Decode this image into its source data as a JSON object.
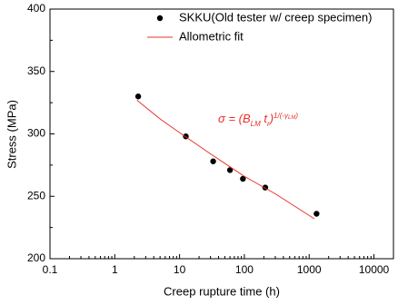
{
  "chart_data": {
    "type": "scatter",
    "x_label": "Creep rupture time (h)",
    "y_label": "Stress (MPa)",
    "xscale": "log",
    "xlim": [
      0.1,
      20000
    ],
    "xticks": [
      0.1,
      1,
      10,
      100,
      1000,
      10000
    ],
    "ylim": [
      200,
      400
    ],
    "yticks": [
      200,
      250,
      300,
      350,
      400
    ],
    "series": [
      {
        "name": "SKKU(Old tester w/ creep specimen)",
        "color": "#000000",
        "style": "markers",
        "x": [
          2.3,
          12.5,
          33,
          60,
          95,
          210,
          1300
        ],
        "values": [
          330,
          298,
          278,
          271,
          264,
          257,
          236
        ]
      },
      {
        "name": "Allometric fit",
        "color": "#e8312a",
        "style": "line",
        "x": [
          2.2,
          5,
          10,
          30,
          100,
          300,
          1200
        ],
        "values": [
          327,
          312,
          301,
          284,
          266,
          252,
          232
        ]
      }
    ],
    "annotation": [
      "σ = (",
      "B",
      "LM",
      " t",
      "r",
      ")",
      "1/(-γ",
      "LM",
      ")"
    ]
  }
}
